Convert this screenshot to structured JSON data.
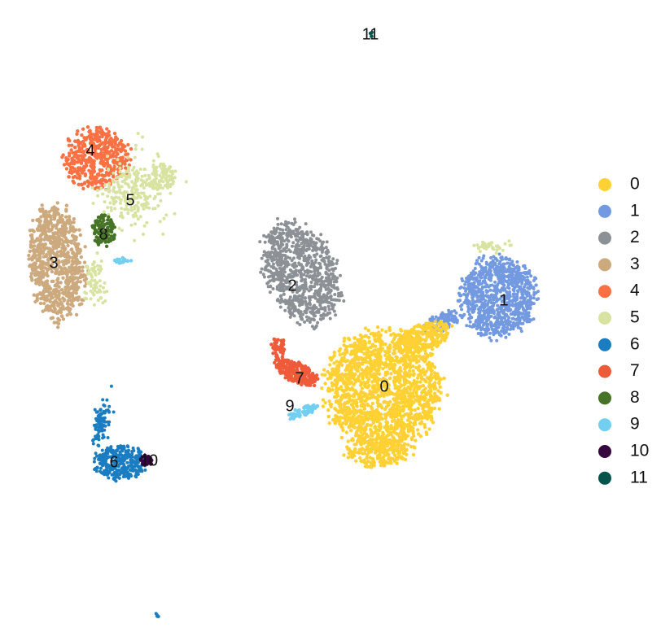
{
  "chart_data": {
    "type": "scatter",
    "title": "",
    "xlabel": "",
    "ylabel": "",
    "axes_visible": false,
    "grid": false,
    "legend_placement": "right",
    "clusters": [
      {
        "id": "0",
        "color": "#FFD134"
      },
      {
        "id": "1",
        "color": "#739AE0"
      },
      {
        "id": "2",
        "color": "#8C9196"
      },
      {
        "id": "3",
        "color": "#CDA97E"
      },
      {
        "id": "4",
        "color": "#FC7144"
      },
      {
        "id": "5",
        "color": "#D8E3A2"
      },
      {
        "id": "6",
        "color": "#1A7DC2"
      },
      {
        "id": "7",
        "color": "#EE5B3B"
      },
      {
        "id": "8",
        "color": "#467326"
      },
      {
        "id": "9",
        "color": "#73CFF0"
      },
      {
        "id": "10",
        "color": "#36063E"
      },
      {
        "id": "11",
        "color": "#04544B"
      }
    ],
    "legend": [
      "0",
      "1",
      "2",
      "3",
      "4",
      "5",
      "6",
      "7",
      "8",
      "9",
      "10",
      "11"
    ],
    "cluster_labels": [
      "0",
      "1",
      "2",
      "3",
      "4",
      "5",
      "6",
      "7",
      "8",
      "9",
      "10",
      "11"
    ]
  }
}
